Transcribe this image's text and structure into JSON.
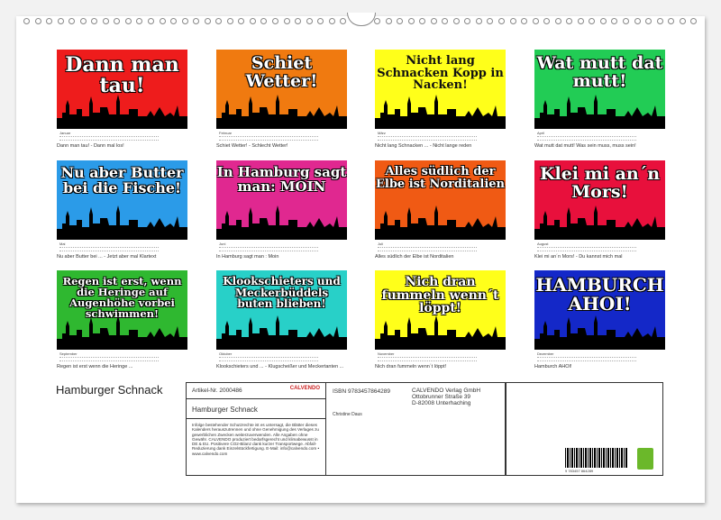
{
  "title": "Hamburger Schnack",
  "months": [
    {
      "month": "Januar",
      "text": "Dann man tau!",
      "caption": "Dann man tau! - Dann mal los!",
      "bg": "#ee1c1c",
      "fg": "#ffffff",
      "size": 22
    },
    {
      "month": "Februar",
      "text": "Schiet Wetter!",
      "caption": "Schiet Wetter! - Schlecht Wetter!",
      "bg": "#f07a10",
      "fg": "#ffffff",
      "size": 19
    },
    {
      "month": "März",
      "text": "Nicht lang Schnacken Kopp in Nacken!",
      "caption": "Nicht lang Schnacken ... - Nicht lange reden",
      "bg": "#ffff1a",
      "fg": "#111111",
      "size": 13
    },
    {
      "month": "April",
      "text": "Wat mutt dat mutt!",
      "caption": "Wat mutt dat mutt! Was sein muss, muss sein!",
      "bg": "#22cc55",
      "fg": "#ffffff",
      "size": 19
    },
    {
      "month": "Mai",
      "text": "Nu aber Butter bei die Fische!",
      "caption": "Nu aber Butter bei ... - Jetzt aber mal Klartext",
      "bg": "#2b9be8",
      "fg": "#ffffff",
      "size": 16
    },
    {
      "month": "Juni",
      "text": "In Hamburg sagt man: MOIN",
      "caption": "In Hamburg sagt man : Moin",
      "bg": "#e02890",
      "fg": "#ffffff",
      "size": 15
    },
    {
      "month": "Juli",
      "text": "Alles südlich der Elbe ist Norditalien",
      "caption": "Alles südlich der Elbe ist Norditalien",
      "bg": "#f05a14",
      "fg": "#ffffff",
      "size": 13
    },
    {
      "month": "August",
      "text": "Klei mi an´n Mors!",
      "caption": "Klei mi an´n Mors! - Du kannst mich mal",
      "bg": "#e8103c",
      "fg": "#ffffff",
      "size": 19
    },
    {
      "month": "September",
      "text": "Regen ist erst, wenn die Heringe auf Augenhöhe vorbei schwimmen!",
      "caption": "Regen ist erst wenn die Heringe ...",
      "bg": "#2fb830",
      "fg": "#ffffff",
      "size": 11.5
    },
    {
      "month": "Oktober",
      "text": "Klookschieters und Meckerbüddels buten blieben!",
      "caption": "Klookschieters und ... - Klugscheißer und Meckertanten ...",
      "bg": "#28d0c8",
      "fg": "#ffffff",
      "size": 12
    },
    {
      "month": "November",
      "text": "Nich dran fummeln wenn´t löppt!",
      "caption": "Nich dran fummeln wenn´t löppt!",
      "bg": "#ffff1a",
      "fg": "#ffffff",
      "size": 14
    },
    {
      "month": "Dezember",
      "text": "HAMBURCH AHOI!",
      "caption": "Hamburch AHOI!",
      "bg": "#1428c8",
      "fg": "#ffffff",
      "size": 20
    }
  ],
  "info": {
    "article": "Artikel-Nr. 2000486",
    "brand": "CALVENDO",
    "product": "Hamburger Schnack",
    "legal": "Infolge bestehender Schutzrechte ist es untersagt, die Blätter dieses Kalenders herauszutrennen und ohne Genehmigung des Verlages zu gewerblichen Zwecken weiterzuverwenden. Alle Angaben ohne Gewähr. CALVENDO produziert bedarfsgerecht und klimabewusst in DE & EU. Positivere CO2-Bilanz dank kurzer Transportwege. Abfall-Reduzierung dank Einzelstückfertigung. E-Mail: info@calvendo.com • www.calvendo.com",
    "isbn": "ISBN 9783457864289",
    "author": "Christine Daus",
    "publisher": [
      "CALVENDO Verlag GmbH",
      "Ottobrunner Straße 39",
      "D-82008 Unterhaching"
    ],
    "barcode": "9 783457 864289"
  }
}
